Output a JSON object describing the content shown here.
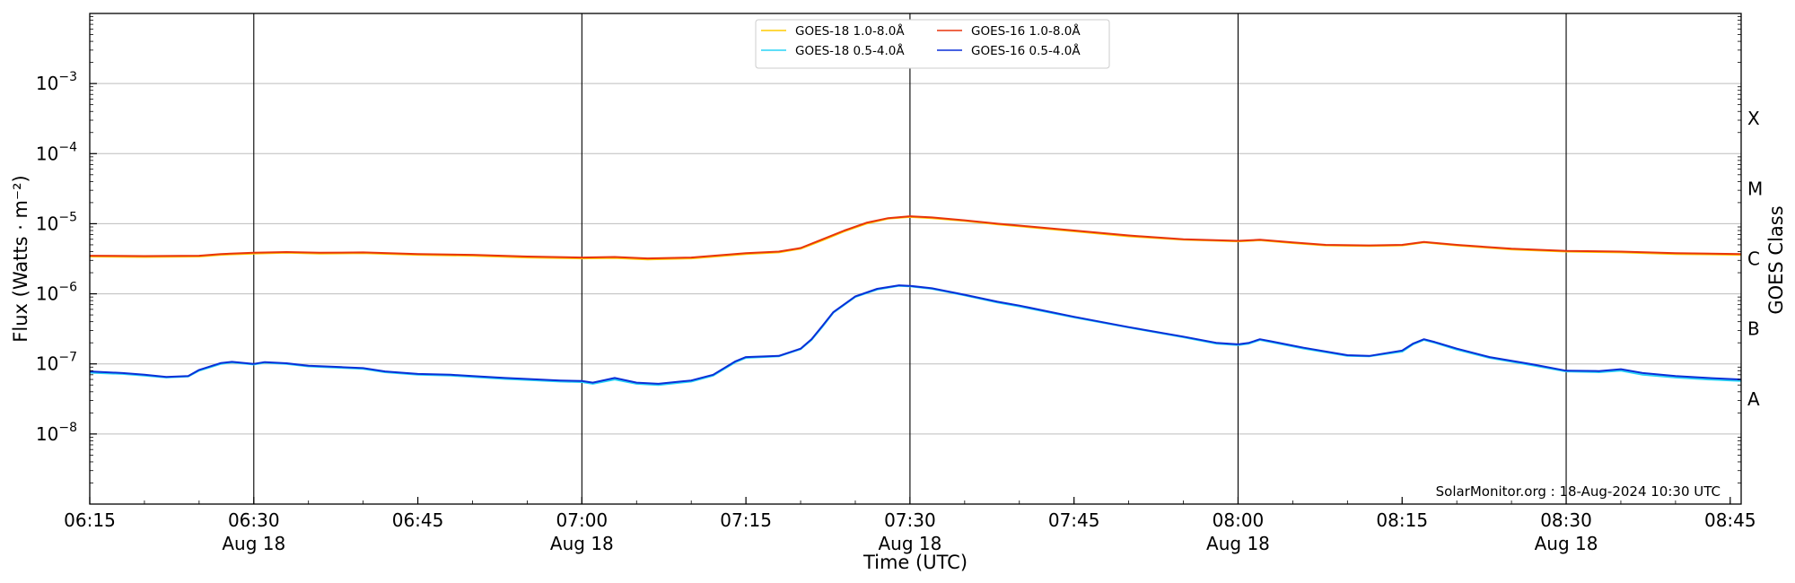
{
  "chart_data": {
    "type": "line",
    "xlabel": "Time (UTC)",
    "ylabel": "Flux (Watts · m⁻²)",
    "ylabel_right": "GOES Class",
    "y_scale": "log",
    "ylim": [
      1e-09,
      0.01
    ],
    "xlim": [
      "06:15",
      "08:46"
    ],
    "grid": "horizontal gridlines at each decade; vertical lines every 30 minutes",
    "legend_position": "top-center",
    "credit": "SolarMonitor.org : 18-Aug-2024 10:30 UTC",
    "x_ticks": [
      {
        "time": "06:15",
        "label": "06:15",
        "sub": ""
      },
      {
        "time": "06:30",
        "label": "06:30",
        "sub": "Aug 18"
      },
      {
        "time": "06:45",
        "label": "06:45",
        "sub": ""
      },
      {
        "time": "07:00",
        "label": "07:00",
        "sub": "Aug 18"
      },
      {
        "time": "07:15",
        "label": "07:15",
        "sub": ""
      },
      {
        "time": "07:30",
        "label": "07:30",
        "sub": "Aug 18"
      },
      {
        "time": "07:45",
        "label": "07:45",
        "sub": ""
      },
      {
        "time": "08:00",
        "label": "08:00",
        "sub": "Aug 18"
      },
      {
        "time": "08:15",
        "label": "08:15",
        "sub": ""
      },
      {
        "time": "08:30",
        "label": "08:30",
        "sub": "Aug 18"
      },
      {
        "time": "08:45",
        "label": "08:45",
        "sub": ""
      }
    ],
    "vertical_lines": [
      "06:30",
      "07:00",
      "07:30",
      "08:00",
      "08:30"
    ],
    "y_ticks": [
      {
        "exp": -3,
        "label": "10"
      },
      {
        "exp": -4,
        "label": "10"
      },
      {
        "exp": -5,
        "label": "10"
      },
      {
        "exp": -6,
        "label": "10"
      },
      {
        "exp": -7,
        "label": "10"
      },
      {
        "exp": -8,
        "label": "10"
      }
    ],
    "goes_classes": [
      {
        "label": "X",
        "exp": -3.5
      },
      {
        "label": "M",
        "exp": -4.5
      },
      {
        "label": "C",
        "exp": -5.5
      },
      {
        "label": "B",
        "exp": -6.5
      },
      {
        "label": "A",
        "exp": -7.5
      }
    ],
    "series": [
      {
        "name": "GOES-18 1.0-8.0Å",
        "color": "#ffcc00",
        "points": [
          [
            "06:15",
            3.4e-06
          ],
          [
            "06:20",
            3.35e-06
          ],
          [
            "06:25",
            3.4e-06
          ],
          [
            "06:27",
            3.6e-06
          ],
          [
            "06:30",
            3.75e-06
          ],
          [
            "06:33",
            3.85e-06
          ],
          [
            "06:36",
            3.75e-06
          ],
          [
            "06:40",
            3.8e-06
          ],
          [
            "06:45",
            3.6e-06
          ],
          [
            "06:50",
            3.5e-06
          ],
          [
            "06:55",
            3.3e-06
          ],
          [
            "07:00",
            3.2e-06
          ],
          [
            "07:03",
            3.25e-06
          ],
          [
            "07:06",
            3.1e-06
          ],
          [
            "07:10",
            3.2e-06
          ],
          [
            "07:15",
            3.7e-06
          ],
          [
            "07:18",
            3.9e-06
          ],
          [
            "07:20",
            4.4e-06
          ],
          [
            "07:22",
            5.8e-06
          ],
          [
            "07:24",
            7.8e-06
          ],
          [
            "07:26",
            1e-05
          ],
          [
            "07:28",
            1.18e-05
          ],
          [
            "07:30",
            1.25e-05
          ],
          [
            "07:32",
            1.2e-05
          ],
          [
            "07:35",
            1.1e-05
          ],
          [
            "07:38",
            9.8e-06
          ],
          [
            "07:40",
            9.2e-06
          ],
          [
            "07:45",
            7.8e-06
          ],
          [
            "07:50",
            6.6e-06
          ],
          [
            "07:55",
            5.9e-06
          ],
          [
            "08:00",
            5.6e-06
          ],
          [
            "08:02",
            5.8e-06
          ],
          [
            "08:05",
            5.3e-06
          ],
          [
            "08:08",
            4.9e-06
          ],
          [
            "08:12",
            4.8e-06
          ],
          [
            "08:15",
            4.9e-06
          ],
          [
            "08:17",
            5.4e-06
          ],
          [
            "08:20",
            4.9e-06
          ],
          [
            "08:25",
            4.3e-06
          ],
          [
            "08:30",
            4e-06
          ],
          [
            "08:35",
            3.9e-06
          ],
          [
            "08:40",
            3.7e-06
          ],
          [
            "08:46",
            3.6e-06
          ]
        ]
      },
      {
        "name": "GOES-16 1.0-8.0Å",
        "color": "#e8340c",
        "points": [
          [
            "06:15",
            3.5e-06
          ],
          [
            "06:20",
            3.45e-06
          ],
          [
            "06:25",
            3.5e-06
          ],
          [
            "06:27",
            3.7e-06
          ],
          [
            "06:30",
            3.85e-06
          ],
          [
            "06:33",
            3.95e-06
          ],
          [
            "06:36",
            3.85e-06
          ],
          [
            "06:40",
            3.9e-06
          ],
          [
            "06:45",
            3.7e-06
          ],
          [
            "06:50",
            3.6e-06
          ],
          [
            "06:55",
            3.4e-06
          ],
          [
            "07:00",
            3.3e-06
          ],
          [
            "07:03",
            3.35e-06
          ],
          [
            "07:06",
            3.2e-06
          ],
          [
            "07:10",
            3.3e-06
          ],
          [
            "07:15",
            3.8e-06
          ],
          [
            "07:18",
            4e-06
          ],
          [
            "07:20",
            4.5e-06
          ],
          [
            "07:22",
            6e-06
          ],
          [
            "07:24",
            8e-06
          ],
          [
            "07:26",
            1.03e-05
          ],
          [
            "07:28",
            1.2e-05
          ],
          [
            "07:30",
            1.28e-05
          ],
          [
            "07:32",
            1.23e-05
          ],
          [
            "07:35",
            1.12e-05
          ],
          [
            "07:38",
            1e-05
          ],
          [
            "07:40",
            9.4e-06
          ],
          [
            "07:45",
            8e-06
          ],
          [
            "07:50",
            6.8e-06
          ],
          [
            "07:55",
            6e-06
          ],
          [
            "08:00",
            5.7e-06
          ],
          [
            "08:02",
            5.9e-06
          ],
          [
            "08:05",
            5.4e-06
          ],
          [
            "08:08",
            5e-06
          ],
          [
            "08:12",
            4.9e-06
          ],
          [
            "08:15",
            5e-06
          ],
          [
            "08:17",
            5.5e-06
          ],
          [
            "08:20",
            5e-06
          ],
          [
            "08:25",
            4.4e-06
          ],
          [
            "08:30",
            4.1e-06
          ],
          [
            "08:35",
            4e-06
          ],
          [
            "08:40",
            3.8e-06
          ],
          [
            "08:46",
            3.7e-06
          ]
        ]
      },
      {
        "name": "GOES-18 0.5-4.0Å",
        "color": "#29d4f5",
        "points": [
          [
            "06:15",
            7.5e-08
          ],
          [
            "06:18",
            7.2e-08
          ],
          [
            "06:20",
            6.8e-08
          ],
          [
            "06:22",
            6.4e-08
          ],
          [
            "06:24",
            6.6e-08
          ],
          [
            "06:25",
            8e-08
          ],
          [
            "06:27",
            1e-07
          ],
          [
            "06:28",
            1.05e-07
          ],
          [
            "06:30",
            9.8e-08
          ],
          [
            "06:31",
            1.04e-07
          ],
          [
            "06:33",
            1e-07
          ],
          [
            "06:35",
            9.2e-08
          ],
          [
            "06:38",
            8.8e-08
          ],
          [
            "06:40",
            8.5e-08
          ],
          [
            "06:42",
            7.6e-08
          ],
          [
            "06:45",
            7e-08
          ],
          [
            "06:48",
            6.8e-08
          ],
          [
            "06:50",
            6.5e-08
          ],
          [
            "06:53",
            6.1e-08
          ],
          [
            "06:55",
            5.9e-08
          ],
          [
            "06:58",
            5.6e-08
          ],
          [
            "07:00",
            5.5e-08
          ],
          [
            "07:01",
            5.2e-08
          ],
          [
            "07:03",
            6e-08
          ],
          [
            "07:05",
            5.2e-08
          ],
          [
            "07:07",
            5e-08
          ],
          [
            "07:10",
            5.6e-08
          ],
          [
            "07:12",
            6.8e-08
          ],
          [
            "07:14",
            1.05e-07
          ],
          [
            "07:15",
            1.22e-07
          ],
          [
            "07:18",
            1.28e-07
          ],
          [
            "07:20",
            1.62e-07
          ],
          [
            "07:21",
            2.2e-07
          ],
          [
            "07:22",
            3.4e-07
          ],
          [
            "07:23",
            5.4e-07
          ],
          [
            "07:25",
            9e-07
          ],
          [
            "07:27",
            1.15e-06
          ],
          [
            "07:29",
            1.3e-06
          ],
          [
            "07:30",
            1.28e-06
          ],
          [
            "07:32",
            1.18e-06
          ],
          [
            "07:35",
            9.5e-07
          ],
          [
            "07:38",
            7.5e-07
          ],
          [
            "07:40",
            6.6e-07
          ],
          [
            "07:45",
            4.6e-07
          ],
          [
            "07:50",
            3.3e-07
          ],
          [
            "07:55",
            2.4e-07
          ],
          [
            "07:58",
            1.95e-07
          ],
          [
            "08:00",
            1.85e-07
          ],
          [
            "08:01",
            1.95e-07
          ],
          [
            "08:02",
            2.2e-07
          ],
          [
            "08:03",
            2.05e-07
          ],
          [
            "08:06",
            1.65e-07
          ],
          [
            "08:10",
            1.3e-07
          ],
          [
            "08:12",
            1.28e-07
          ],
          [
            "08:15",
            1.5e-07
          ],
          [
            "08:16",
            1.9e-07
          ],
          [
            "08:17",
            2.2e-07
          ],
          [
            "08:18",
            2e-07
          ],
          [
            "08:20",
            1.6e-07
          ],
          [
            "08:23",
            1.22e-07
          ],
          [
            "08:27",
            9.5e-08
          ],
          [
            "08:30",
            7.8e-08
          ],
          [
            "08:33",
            7.6e-08
          ],
          [
            "08:35",
            8e-08
          ],
          [
            "08:37",
            7e-08
          ],
          [
            "08:40",
            6.4e-08
          ],
          [
            "08:43",
            6e-08
          ],
          [
            "08:46",
            5.7e-08
          ]
        ]
      },
      {
        "name": "GOES-16 0.5-4.0Å",
        "color": "#0a2fd8",
        "points": [
          [
            "06:15",
            7.8e-08
          ],
          [
            "06:18",
            7.4e-08
          ],
          [
            "06:20",
            7e-08
          ],
          [
            "06:22",
            6.5e-08
          ],
          [
            "06:24",
            6.7e-08
          ],
          [
            "06:25",
            8.2e-08
          ],
          [
            "06:27",
            1.03e-07
          ],
          [
            "06:28",
            1.07e-07
          ],
          [
            "06:30",
            1e-07
          ],
          [
            "06:31",
            1.06e-07
          ],
          [
            "06:33",
            1.02e-07
          ],
          [
            "06:35",
            9.4e-08
          ],
          [
            "06:38",
            9e-08
          ],
          [
            "06:40",
            8.7e-08
          ],
          [
            "06:42",
            7.8e-08
          ],
          [
            "06:45",
            7.2e-08
          ],
          [
            "06:48",
            7e-08
          ],
          [
            "06:50",
            6.7e-08
          ],
          [
            "06:53",
            6.3e-08
          ],
          [
            "06:55",
            6.1e-08
          ],
          [
            "06:58",
            5.8e-08
          ],
          [
            "07:00",
            5.7e-08
          ],
          [
            "07:01",
            5.4e-08
          ],
          [
            "07:03",
            6.3e-08
          ],
          [
            "07:05",
            5.4e-08
          ],
          [
            "07:07",
            5.2e-08
          ],
          [
            "07:10",
            5.8e-08
          ],
          [
            "07:12",
            7e-08
          ],
          [
            "07:14",
            1.08e-07
          ],
          [
            "07:15",
            1.25e-07
          ],
          [
            "07:18",
            1.3e-07
          ],
          [
            "07:20",
            1.65e-07
          ],
          [
            "07:21",
            2.25e-07
          ],
          [
            "07:22",
            3.5e-07
          ],
          [
            "07:23",
            5.5e-07
          ],
          [
            "07:25",
            9.2e-07
          ],
          [
            "07:27",
            1.18e-06
          ],
          [
            "07:29",
            1.32e-06
          ],
          [
            "07:30",
            1.3e-06
          ],
          [
            "07:32",
            1.2e-06
          ],
          [
            "07:35",
            9.7e-07
          ],
          [
            "07:38",
            7.7e-07
          ],
          [
            "07:40",
            6.8e-07
          ],
          [
            "07:45",
            4.7e-07
          ],
          [
            "07:50",
            3.35e-07
          ],
          [
            "07:55",
            2.45e-07
          ],
          [
            "07:58",
            2e-07
          ],
          [
            "08:00",
            1.9e-07
          ],
          [
            "08:01",
            2e-07
          ],
          [
            "08:02",
            2.25e-07
          ],
          [
            "08:03",
            2.1e-07
          ],
          [
            "08:06",
            1.7e-07
          ],
          [
            "08:10",
            1.33e-07
          ],
          [
            "08:12",
            1.3e-07
          ],
          [
            "08:15",
            1.55e-07
          ],
          [
            "08:16",
            1.95e-07
          ],
          [
            "08:17",
            2.25e-07
          ],
          [
            "08:18",
            2.05e-07
          ],
          [
            "08:20",
            1.65e-07
          ],
          [
            "08:23",
            1.25e-07
          ],
          [
            "08:27",
            9.8e-08
          ],
          [
            "08:30",
            8e-08
          ],
          [
            "08:33",
            7.9e-08
          ],
          [
            "08:35",
            8.4e-08
          ],
          [
            "08:37",
            7.4e-08
          ],
          [
            "08:40",
            6.7e-08
          ],
          [
            "08:43",
            6.3e-08
          ],
          [
            "08:46",
            6e-08
          ]
        ]
      }
    ],
    "legend_order": [
      0,
      2,
      1,
      3
    ]
  }
}
